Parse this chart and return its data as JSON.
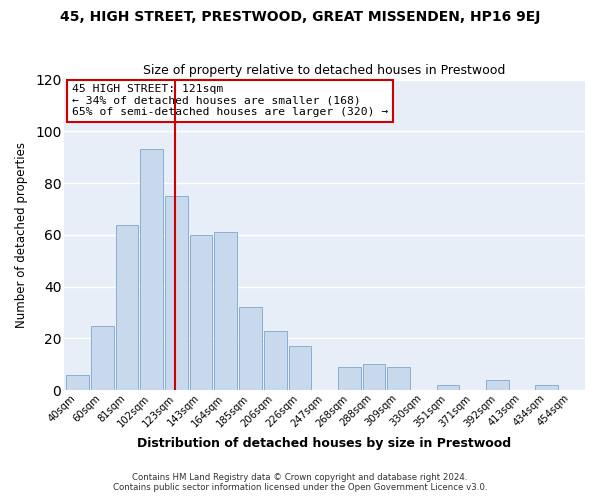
{
  "title": "45, HIGH STREET, PRESTWOOD, GREAT MISSENDEN, HP16 9EJ",
  "subtitle": "Size of property relative to detached houses in Prestwood",
  "xlabel": "Distribution of detached houses by size in Prestwood",
  "ylabel": "Number of detached properties",
  "bar_color": "#c8d9ed",
  "bar_edge_color": "#89afd0",
  "bin_labels": [
    "40sqm",
    "60sqm",
    "81sqm",
    "102sqm",
    "123sqm",
    "143sqm",
    "164sqm",
    "185sqm",
    "206sqm",
    "226sqm",
    "247sqm",
    "268sqm",
    "288sqm",
    "309sqm",
    "330sqm",
    "351sqm",
    "371sqm",
    "392sqm",
    "413sqm",
    "434sqm",
    "454sqm"
  ],
  "bar_heights": [
    6,
    25,
    64,
    93,
    75,
    60,
    61,
    32,
    23,
    17,
    0,
    9,
    10,
    9,
    0,
    2,
    0,
    4,
    0,
    2,
    0
  ],
  "ylim": [
    0,
    120
  ],
  "yticks": [
    0,
    20,
    40,
    60,
    80,
    100,
    120
  ],
  "vline_x": 4,
  "vline_color": "#cc0000",
  "annotation_title": "45 HIGH STREET: 121sqm",
  "annotation_line1": "← 34% of detached houses are smaller (168)",
  "annotation_line2": "65% of semi-detached houses are larger (320) →",
  "annotation_box_color": "#ffffff",
  "annotation_box_edge": "#cc0000",
  "footer1": "Contains HM Land Registry data © Crown copyright and database right 2024.",
  "footer2": "Contains public sector information licensed under the Open Government Licence v3.0.",
  "background_color": "#ffffff",
  "plot_bg_color": "#e8eef7",
  "grid_color": "#ffffff"
}
